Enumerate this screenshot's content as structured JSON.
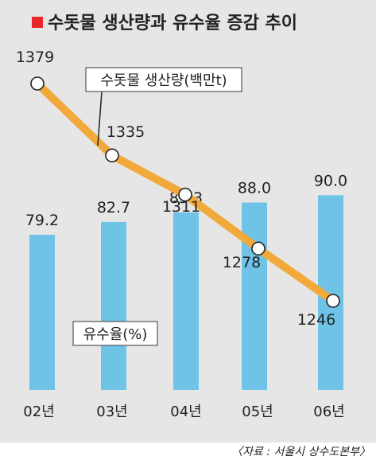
{
  "chart_data": {
    "type": "bar",
    "title": "수돗물 생산량과 유수율 증감 추이",
    "categories": [
      "02년",
      "03년",
      "04년",
      "05년",
      "06년"
    ],
    "series": [
      {
        "name": "유수율(%)",
        "type": "bar",
        "values": [
          79.2,
          82.7,
          85.3,
          88.0,
          90.0
        ],
        "labels": [
          "79.2",
          "82.7",
          "85.3",
          "88.0",
          "90.0"
        ],
        "color": "#6ec3e6"
      },
      {
        "name": "수돗물 생산량(백만t)",
        "type": "line",
        "values": [
          1379,
          1335,
          1311,
          1278,
          1246
        ],
        "labels": [
          "1379",
          "1335",
          "1311",
          "1278",
          "1246"
        ],
        "color": "#f2a93b"
      }
    ],
    "source": "〈자료 : 서울시 상수도본부〉",
    "grid": false
  },
  "colors": {
    "plot_background": "#e6e6e6",
    "title_marker": "#e8262b"
  }
}
